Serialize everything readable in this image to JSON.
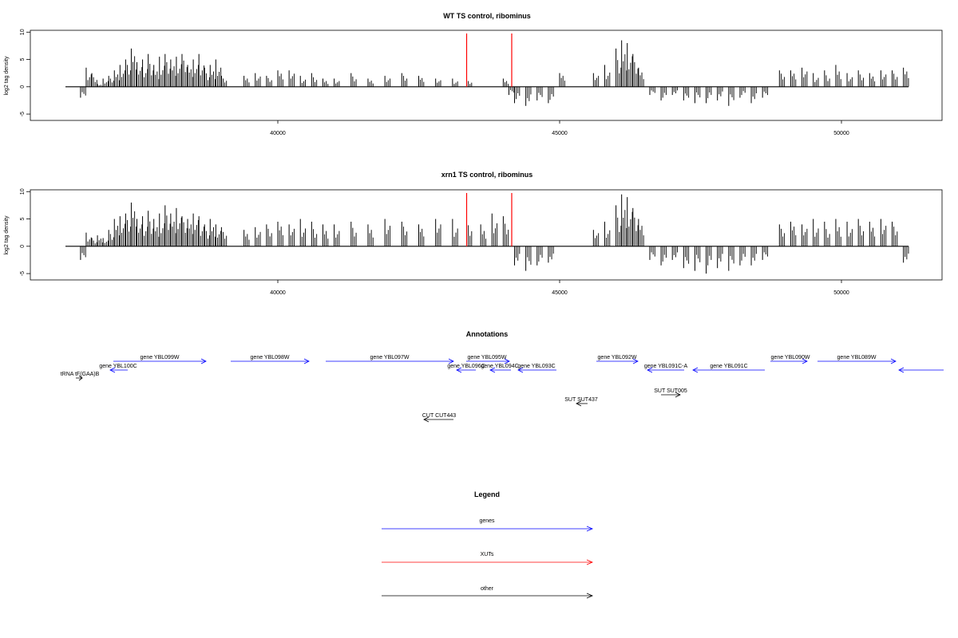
{
  "chart_data": [
    {
      "type": "bar",
      "title": "WT TS control, ribominus",
      "ylabel": "log2 tag density",
      "xlabel": "",
      "x_ticks": [
        40000,
        45000,
        50000
      ],
      "y_ticks": [
        -5,
        0,
        5,
        10
      ],
      "xlim": [
        36100,
        51800
      ],
      "ylim": [
        -6,
        10
      ],
      "grid": false,
      "series": [
        {
          "color": "#000000",
          "x": [
            36500,
            36600,
            36700,
            36800,
            36900,
            37000,
            37100,
            37200,
            37300,
            37400,
            37500,
            37600,
            37700,
            37800,
            37900,
            38000,
            38100,
            38200,
            38300,
            38400,
            38500,
            38600,
            38700,
            38800,
            38900,
            39000,
            39400,
            39600,
            39800,
            40000,
            40200,
            40400,
            40600,
            40800,
            41000,
            41300,
            41600,
            41900,
            42200,
            42500,
            42800,
            43100,
            43350,
            44000,
            44100,
            44200,
            44400,
            44600,
            44800,
            45000,
            45600,
            45800,
            46000,
            46100,
            46200,
            46300,
            46400,
            46600,
            46800,
            47000,
            47200,
            47400,
            47600,
            47800,
            48000,
            48200,
            48400,
            48600,
            48900,
            49100,
            49300,
            49500,
            49700,
            49900,
            50100,
            50300,
            50500,
            50700,
            50900,
            51100
          ],
          "values": [
            -2,
            3.5,
            2.5,
            0.5,
            1.5,
            2,
            3,
            4,
            5,
            7,
            4.5,
            5,
            6,
            4,
            5.5,
            6,
            5,
            5.5,
            6,
            4,
            5,
            6,
            3.5,
            4,
            5,
            2,
            2,
            2.5,
            2,
            3,
            3,
            2,
            2.5,
            1.5,
            1.5,
            2.5,
            1.5,
            2,
            2.5,
            2,
            1.5,
            1.5,
            1.5,
            1.5,
            -1.5,
            -3,
            -3.5,
            -2.5,
            -3,
            2.5,
            2.5,
            4,
            7,
            8.5,
            8,
            6,
            3.5,
            -1.5,
            -2.5,
            -1.5,
            -2.5,
            -3,
            -3,
            -2.5,
            -3.5,
            -2,
            -3,
            -2,
            3,
            3,
            3.5,
            2.5,
            3,
            4,
            2.5,
            3,
            2.5,
            3,
            3,
            3.5
          ]
        }
      ],
      "markers": {
        "color": "#ff0000",
        "x": [
          43350,
          44150
        ]
      }
    },
    {
      "type": "bar",
      "title": "xrn1 TS control, ribominus",
      "ylabel": "log2 tag density",
      "xlabel": "",
      "x_ticks": [
        40000,
        45000,
        50000
      ],
      "y_ticks": [
        -5,
        0,
        5,
        10
      ],
      "xlim": [
        36100,
        51800
      ],
      "ylim": [
        -6,
        10
      ],
      "grid": false,
      "series": [
        {
          "color": "#000000",
          "x": [
            36500,
            36600,
            36700,
            36800,
            36900,
            37000,
            37100,
            37200,
            37300,
            37400,
            37500,
            37600,
            37700,
            37800,
            37900,
            38000,
            38100,
            38200,
            38300,
            38400,
            38500,
            38600,
            38700,
            38800,
            38900,
            39000,
            39400,
            39600,
            39800,
            40000,
            40200,
            40400,
            40600,
            40800,
            41000,
            41300,
            41600,
            41900,
            42200,
            42500,
            42800,
            43100,
            43350,
            43600,
            43800,
            44000,
            44200,
            44400,
            44600,
            44800,
            45600,
            45800,
            46000,
            46100,
            46200,
            46300,
            46400,
            46600,
            46800,
            47000,
            47200,
            47400,
            47600,
            47800,
            48000,
            48200,
            48400,
            48600,
            48900,
            49100,
            49300,
            49500,
            49700,
            49900,
            50100,
            50300,
            50500,
            50700,
            50900,
            51100
          ],
          "values": [
            -2.5,
            2.5,
            1.5,
            2,
            1.5,
            3,
            5,
            5.5,
            6,
            8,
            5,
            5.5,
            6.5,
            5,
            6,
            7.5,
            6,
            7,
            5.5,
            5,
            6,
            5.5,
            4,
            5,
            4,
            3.5,
            3,
            3.5,
            4,
            4.5,
            4,
            5,
            4.5,
            4,
            4,
            4.5,
            4,
            5,
            4.5,
            4,
            5,
            5,
            5.5,
            4,
            6,
            5.5,
            -3.5,
            -4.5,
            -3.5,
            -3,
            3,
            4.5,
            7.5,
            9.5,
            9,
            7,
            5,
            -2.5,
            -3.5,
            -2.5,
            -4,
            -4.5,
            -5,
            -4,
            -4.5,
            -3.5,
            -3.5,
            -2.5,
            4,
            4.5,
            4,
            5,
            4.5,
            5,
            4.5,
            5,
            4.5,
            5,
            4.5,
            -3
          ]
        }
      ],
      "markers": {
        "color": "#ff0000",
        "x": [
          43350,
          44150
        ]
      }
    }
  ],
  "annotations": {
    "title": "Annotations",
    "genes_color": "#0000ff",
    "other_color": "#000000",
    "items": [
      {
        "label": "gene YBL099W",
        "color": "#0000ff"
      },
      {
        "label": "gene YBL100C",
        "color": "#0000ff"
      },
      {
        "label": "gene YBL098W",
        "color": "#0000ff"
      },
      {
        "label": "gene YBL097W",
        "color": "#0000ff"
      },
      {
        "label": "gene YBL095W",
        "color": "#0000ff"
      },
      {
        "label": "gene YBL096C",
        "color": "#0000ff"
      },
      {
        "label": "gene YBL094C",
        "color": "#0000ff"
      },
      {
        "label": "gene YBL093C",
        "color": "#0000ff"
      },
      {
        "label": "gene YBL092W",
        "color": "#0000ff"
      },
      {
        "label": "gene YBL091C-A",
        "color": "#0000ff"
      },
      {
        "label": "gene YBL091C",
        "color": "#0000ff"
      },
      {
        "label": "gene YBL090W",
        "color": "#0000ff"
      },
      {
        "label": "gene YBL089W",
        "color": "#0000ff"
      },
      {
        "label": "tRNA tF(GAA)B",
        "color": "#000000"
      },
      {
        "label": "SUT SUT437",
        "color": "#000000"
      },
      {
        "label": "SUT SUT005",
        "color": "#000000"
      },
      {
        "label": "CUT CUT443",
        "color": "#000000"
      }
    ]
  },
  "legend": {
    "title": "Legend",
    "items": [
      {
        "label": "genes",
        "color": "#0000ff"
      },
      {
        "label": "XUTs",
        "color": "#ff0000"
      },
      {
        "label": "other",
        "color": "#000000"
      }
    ]
  }
}
